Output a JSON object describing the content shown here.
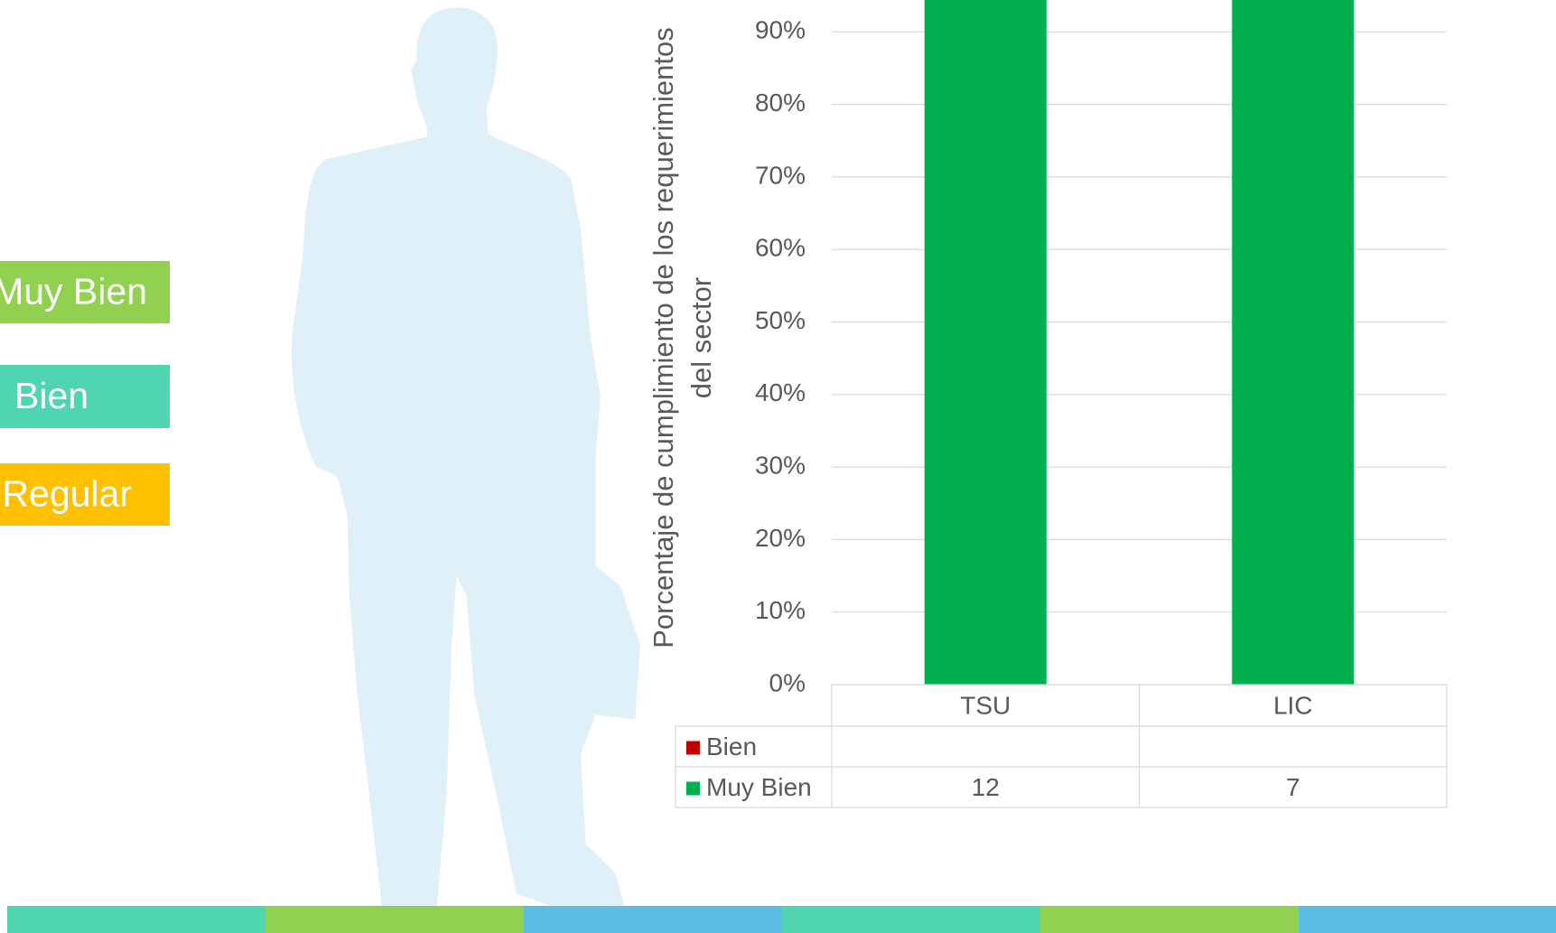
{
  "slide": {
    "legend_boxes": [
      {
        "label": "Muy Bien",
        "color": "#92d050"
      },
      {
        "label": "Bien",
        "color": "#4fd6b0"
      },
      {
        "label": "Regular",
        "color": "#ffc000"
      }
    ]
  },
  "chart_data": {
    "type": "stacked_percent_bar",
    "y_label_lines": [
      "Porcentaje de cumplimiento de los requerimientos",
      "del sector"
    ],
    "categories": [
      "TSU",
      "LIC"
    ],
    "series": [
      {
        "name": "Bien",
        "color": "#c00000",
        "values": [
          null,
          null
        ]
      },
      {
        "name": "Muy Bien",
        "color": "#00b050",
        "values": [
          12,
          7
        ]
      }
    ],
    "ylim": [
      0,
      100
    ],
    "yticks": [
      {
        "value": 0,
        "label": "0%"
      },
      {
        "value": 10,
        "label": "10%"
      },
      {
        "value": 20,
        "label": "20%"
      },
      {
        "value": 30,
        "label": "30%"
      },
      {
        "value": 40,
        "label": "40%"
      },
      {
        "value": 50,
        "label": "50%"
      },
      {
        "value": 60,
        "label": "60%"
      },
      {
        "value": 70,
        "label": "70%"
      },
      {
        "value": 80,
        "label": "80%"
      },
      {
        "value": 90,
        "label": "90%"
      }
    ],
    "grid": true,
    "data_table": true
  }
}
